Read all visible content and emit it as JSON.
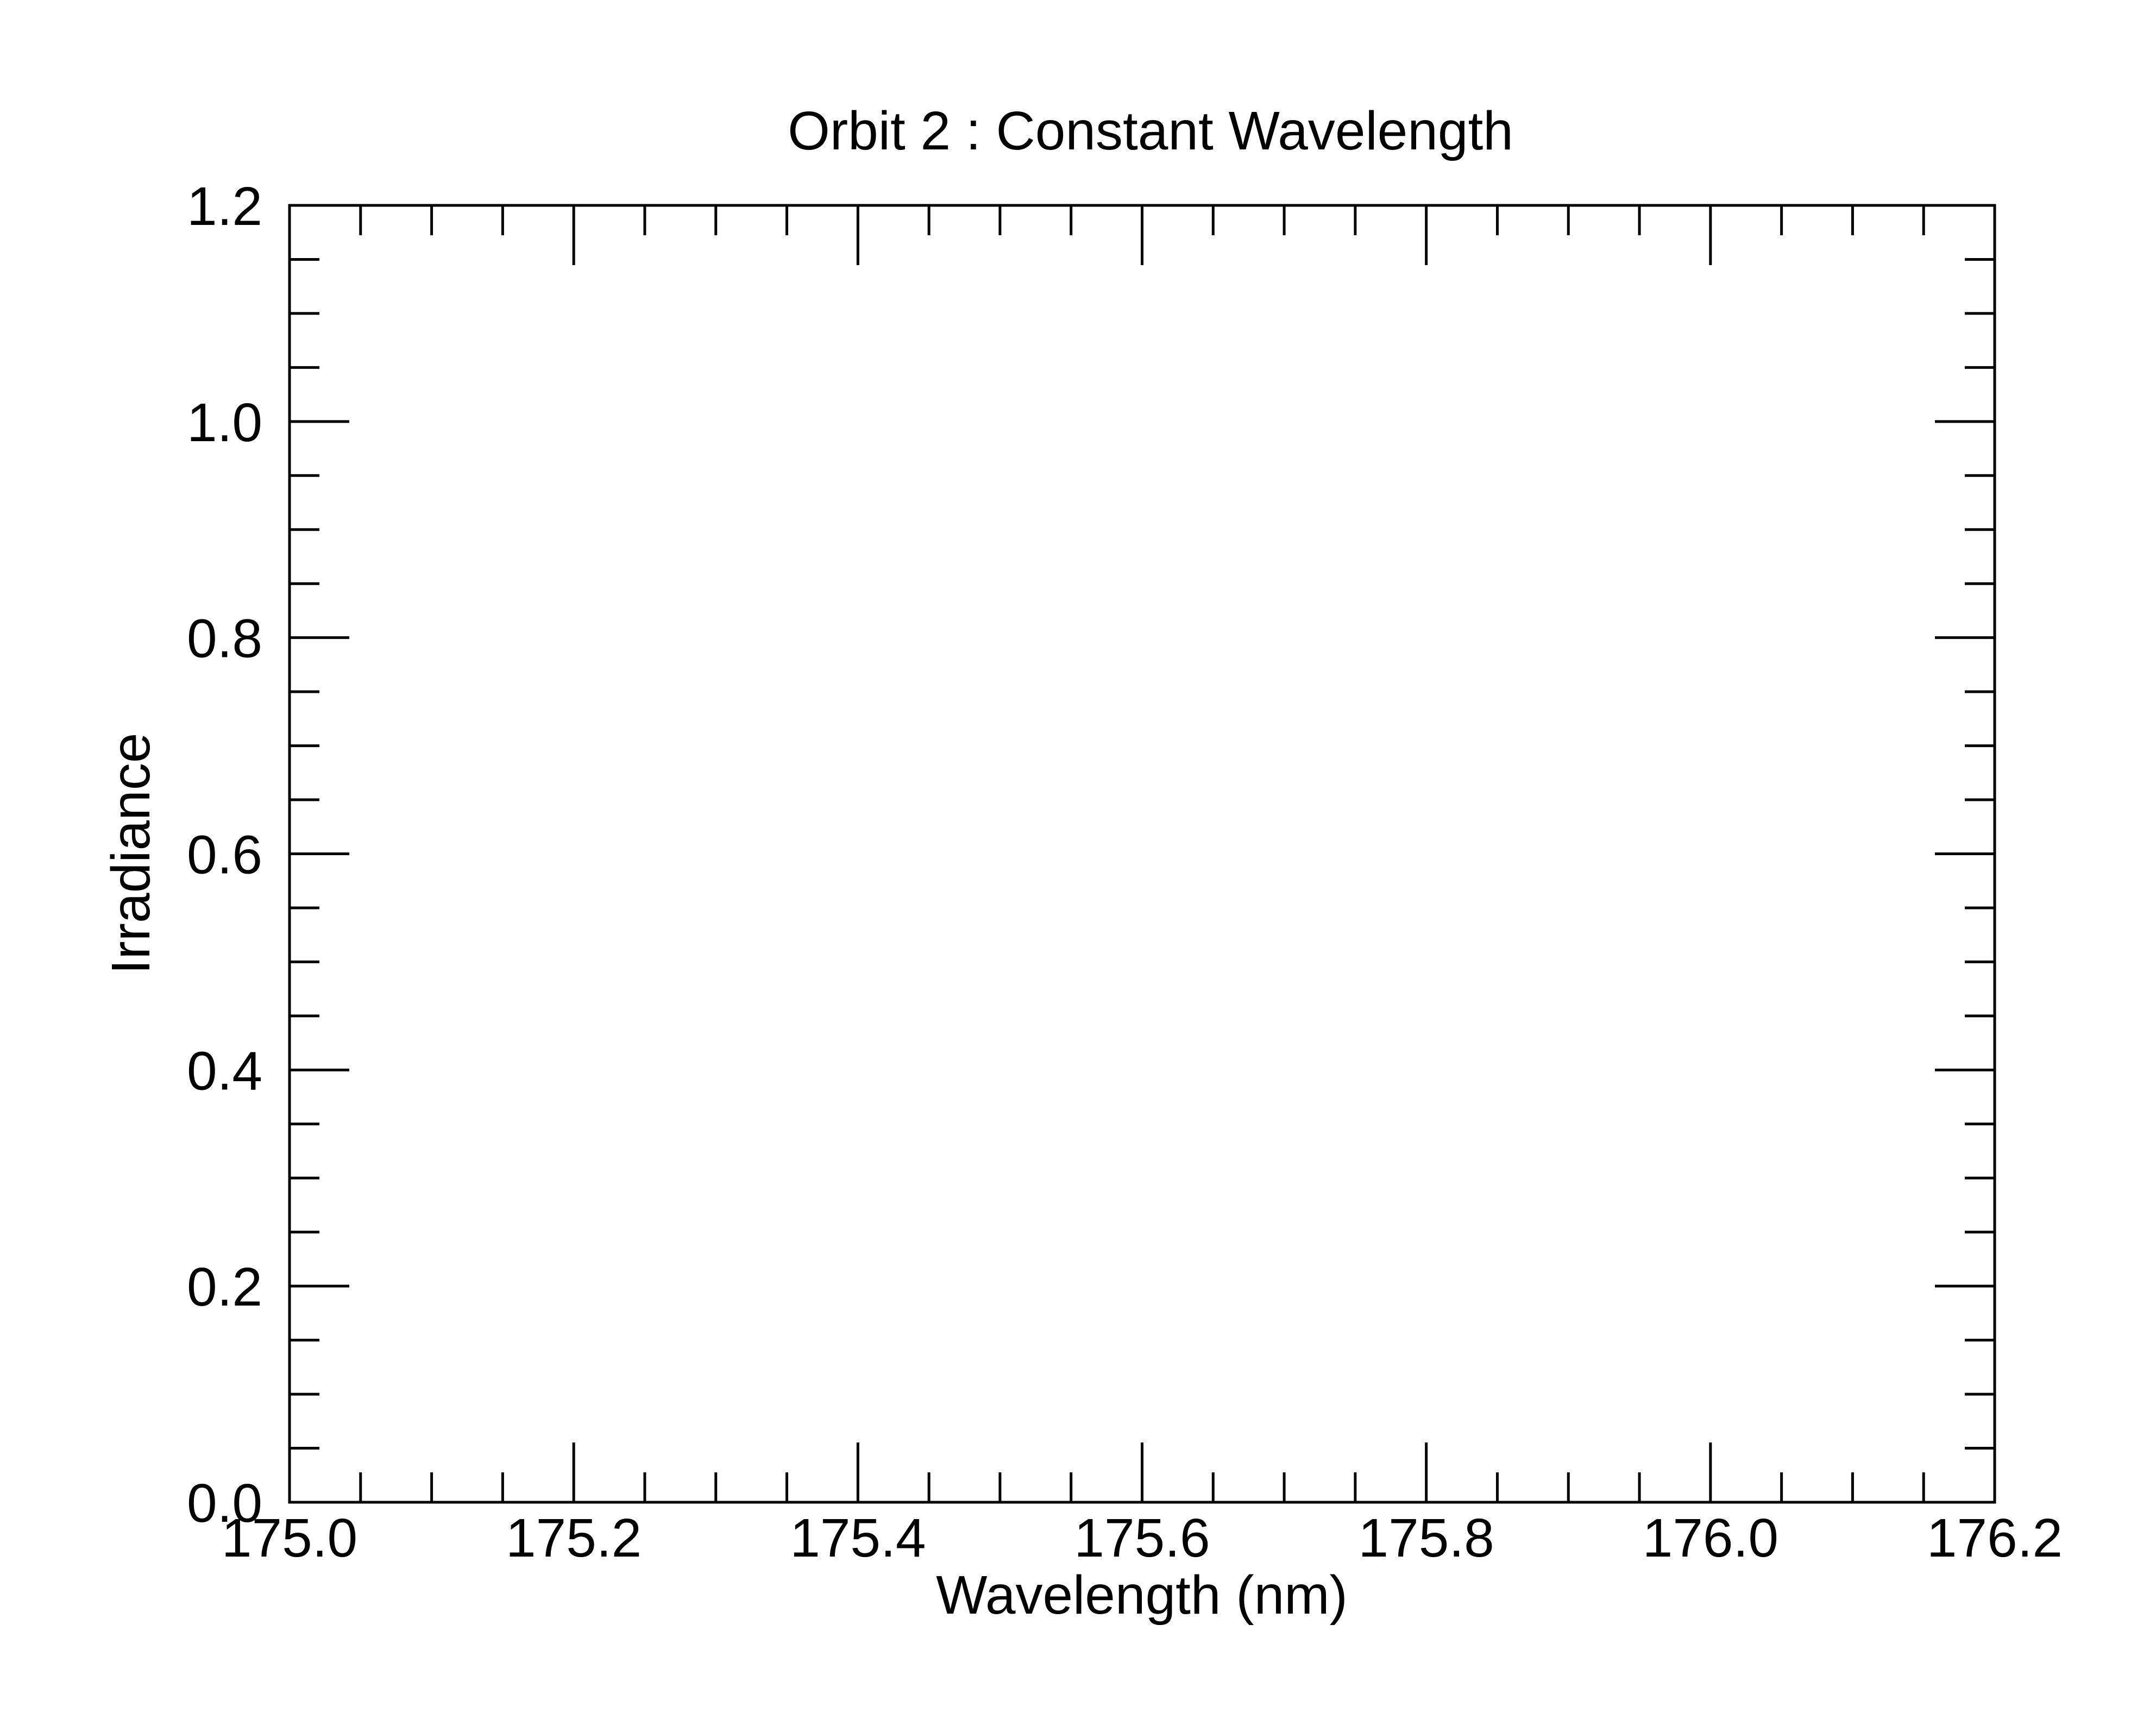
{
  "chart_data": {
    "type": "line",
    "title": "Orbit 2 : Constant Wavelength",
    "xlabel": "Wavelength (nm)",
    "ylabel": "Irradiance",
    "xlim": [
      175.0,
      176.2
    ],
    "ylim": [
      0.0,
      1.2
    ],
    "x_ticks": [
      "175.0",
      "175.2",
      "175.4",
      "175.6",
      "175.8",
      "176.0",
      "176.2"
    ],
    "y_ticks": [
      "0.0",
      "0.2",
      "0.4",
      "0.6",
      "0.8",
      "1.0",
      "1.2"
    ],
    "series": [],
    "grid": false,
    "legend": "none"
  }
}
